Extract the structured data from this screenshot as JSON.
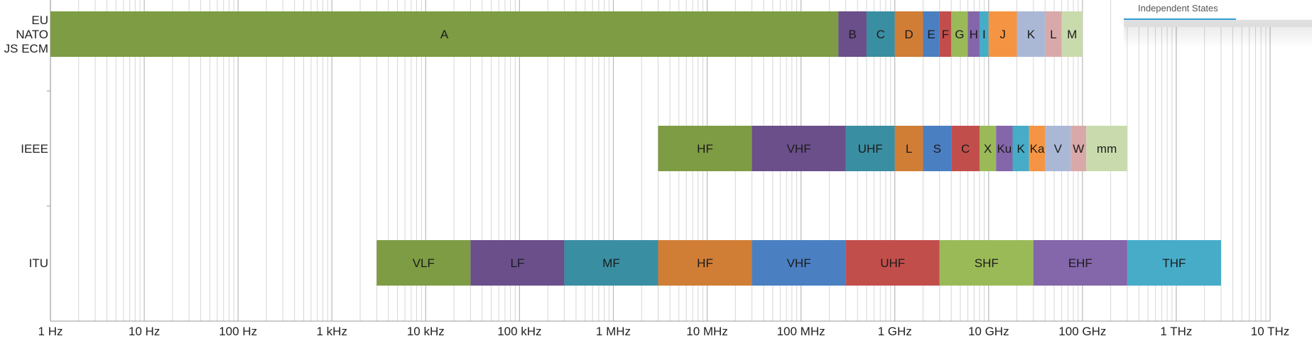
{
  "chart_data": {
    "type": "bar",
    "orientation": "horizontal-range",
    "x_scale": "log",
    "x_unit": "Hz",
    "xlim": [
      1,
      10000000000000
    ],
    "grid": true,
    "x_ticks": [
      {
        "value": 1,
        "label": "1 Hz"
      },
      {
        "value": 10,
        "label": "10 Hz"
      },
      {
        "value": 100,
        "label": "100 Hz"
      },
      {
        "value": 1000,
        "label": "1 kHz"
      },
      {
        "value": 10000,
        "label": "10 kHz"
      },
      {
        "value": 100000,
        "label": "100 kHz"
      },
      {
        "value": 1000000,
        "label": "1 MHz"
      },
      {
        "value": 10000000,
        "label": "10 MHz"
      },
      {
        "value": 100000000,
        "label": "100 MHz"
      },
      {
        "value": 1000000000,
        "label": "1 GHz"
      },
      {
        "value": 10000000000,
        "label": "10 GHz"
      },
      {
        "value": 100000000000,
        "label": "100 GHz"
      },
      {
        "value": 1000000000000,
        "label": "1 THz"
      },
      {
        "value": 10000000000000,
        "label": "10 THz"
      }
    ],
    "rows": [
      {
        "label_lines": [
          "EU",
          "NATO",
          "JS ECM"
        ],
        "bands": [
          {
            "name": "A",
            "start": 1,
            "end": 250000000,
            "color": "#7e9c44"
          },
          {
            "name": "B",
            "start": 250000000,
            "end": 500000000,
            "color": "#6a4f8a"
          },
          {
            "name": "C",
            "start": 500000000,
            "end": 1000000000,
            "color": "#3a8ea2"
          },
          {
            "name": "D",
            "start": 1000000000,
            "end": 2000000000,
            "color": "#d07d36"
          },
          {
            "name": "E",
            "start": 2000000000,
            "end": 3000000000,
            "color": "#4a7fc2"
          },
          {
            "name": "F",
            "start": 3000000000,
            "end": 4000000000,
            "color": "#c24e4c"
          },
          {
            "name": "G",
            "start": 4000000000,
            "end": 6000000000,
            "color": "#9aba58"
          },
          {
            "name": "H",
            "start": 6000000000,
            "end": 8000000000,
            "color": "#8466aa"
          },
          {
            "name": "I",
            "start": 8000000000,
            "end": 10000000000,
            "color": "#46acc8"
          },
          {
            "name": "J",
            "start": 10000000000,
            "end": 20000000000,
            "color": "#f59543"
          },
          {
            "name": "K",
            "start": 20000000000,
            "end": 40000000000,
            "color": "#aab8d6"
          },
          {
            "name": "L",
            "start": 40000000000,
            "end": 60000000000,
            "color": "#d9a9aa"
          },
          {
            "name": "M",
            "start": 60000000000,
            "end": 100000000000,
            "color": "#c9dbad"
          }
        ]
      },
      {
        "label_lines": [
          "IEEE"
        ],
        "bands": [
          {
            "name": "HF",
            "start": 3000000,
            "end": 30000000,
            "color": "#7e9c44"
          },
          {
            "name": "VHF",
            "start": 30000000,
            "end": 300000000,
            "color": "#6a4f8a"
          },
          {
            "name": "UHF",
            "start": 300000000,
            "end": 1000000000,
            "color": "#3a8ea2"
          },
          {
            "name": "L",
            "start": 1000000000,
            "end": 2000000000,
            "color": "#d07d36"
          },
          {
            "name": "S",
            "start": 2000000000,
            "end": 4000000000,
            "color": "#4a7fc2"
          },
          {
            "name": "C",
            "start": 4000000000,
            "end": 8000000000,
            "color": "#c24e4c"
          },
          {
            "name": "X",
            "start": 8000000000,
            "end": 12000000000,
            "color": "#9aba58"
          },
          {
            "name": "Ku",
            "start": 12000000000,
            "end": 18000000000,
            "color": "#8466aa"
          },
          {
            "name": "K",
            "start": 18000000000,
            "end": 27000000000,
            "color": "#46acc8"
          },
          {
            "name": "Ka",
            "start": 27000000000,
            "end": 40000000000,
            "color": "#f59543"
          },
          {
            "name": "V",
            "start": 40000000000,
            "end": 75000000000,
            "color": "#aab8d6"
          },
          {
            "name": "W",
            "start": 75000000000,
            "end": 110000000000,
            "color": "#d9a9aa"
          },
          {
            "name": "mm",
            "start": 110000000000,
            "end": 300000000000,
            "color": "#c9dbad"
          }
        ]
      },
      {
        "label_lines": [
          "ITU"
        ],
        "bands": [
          {
            "name": "VLF",
            "start": 3000,
            "end": 30000,
            "color": "#7e9c44"
          },
          {
            "name": "LF",
            "start": 30000,
            "end": 300000,
            "color": "#6a4f8a"
          },
          {
            "name": "MF",
            "start": 300000,
            "end": 3000000,
            "color": "#3a8ea2"
          },
          {
            "name": "HF",
            "start": 3000000,
            "end": 30000000,
            "color": "#d07d36"
          },
          {
            "name": "VHF",
            "start": 30000000,
            "end": 300000000,
            "color": "#4a7fc2"
          },
          {
            "name": "UHF",
            "start": 300000000,
            "end": 3000000000,
            "color": "#c24e4c"
          },
          {
            "name": "SHF",
            "start": 3000000000,
            "end": 30000000000,
            "color": "#9aba58"
          },
          {
            "name": "EHF",
            "start": 30000000000,
            "end": 300000000000,
            "color": "#8466aa"
          },
          {
            "name": "THF",
            "start": 300000000000,
            "end": 3000000000000,
            "color": "#46acc8"
          }
        ]
      }
    ]
  },
  "legend_fragment": {
    "text": "Independent States",
    "underline_color": "#2e9fd8"
  }
}
